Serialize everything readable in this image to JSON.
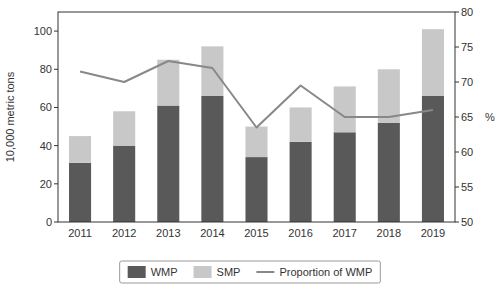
{
  "chart_data": {
    "type": "bar",
    "stacked": true,
    "categories": [
      "2011",
      "2012",
      "2013",
      "2014",
      "2015",
      "2016",
      "2017",
      "2018",
      "2019"
    ],
    "series": [
      {
        "name": "WMP",
        "color": "#595959",
        "values": [
          31,
          40,
          61,
          66,
          34,
          42,
          47,
          52,
          66
        ]
      },
      {
        "name": "SMP",
        "color": "#c8c8c8",
        "values": [
          14,
          18,
          24,
          26,
          16,
          18,
          24,
          28,
          35
        ]
      },
      {
        "name": "Proportion of WMP",
        "type": "line",
        "axis": "y2",
        "color": "#888888",
        "values": [
          71.5,
          70.0,
          73.0,
          72.0,
          63.5,
          69.5,
          65.0,
          65.0,
          66.0
        ]
      }
    ],
    "y_label": "10,000 metric tons",
    "y2_label": "%",
    "ylim": [
      0,
      110
    ],
    "yticks": [
      0,
      20,
      40,
      60,
      80,
      100
    ],
    "y2lim": [
      50,
      80
    ],
    "y2ticks": [
      50,
      55,
      60,
      65,
      70,
      75,
      80
    ],
    "grid": false,
    "legend": "bottom"
  }
}
